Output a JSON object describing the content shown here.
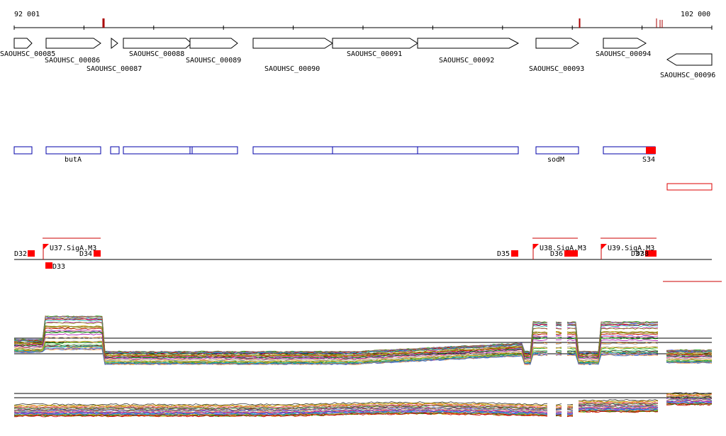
{
  "ruler": {
    "start_label": "92 001",
    "end_label": "102 000"
  },
  "genes": [
    {
      "label": "SAOUHSC_00085",
      "strand": "+"
    },
    {
      "label": "SAOUHSC_00086",
      "strand": "+"
    },
    {
      "label": "SAOUHSC_00087",
      "strand": "+"
    },
    {
      "label": "SAOUHSC_00088",
      "strand": "+"
    },
    {
      "label": "SAOUHSC_00089",
      "strand": "+"
    },
    {
      "label": "SAOUHSC_00090",
      "strand": "+"
    },
    {
      "label": "SAOUHSC_00091",
      "strand": "+"
    },
    {
      "label": "SAOUHSC_00092",
      "strand": "+"
    },
    {
      "label": "SAOUHSC_00093",
      "strand": "+"
    },
    {
      "label": "SAOUHSC_00094",
      "strand": "+"
    },
    {
      "label": "SAOUHSC_00096",
      "strand": "-"
    }
  ],
  "features": [
    {
      "label": ""
    },
    {
      "label": "butA"
    },
    {
      "label": ""
    },
    {
      "label": ""
    },
    {
      "label": ""
    },
    {
      "label": ""
    },
    {
      "label": "sodM"
    },
    {
      "label": "S34"
    }
  ],
  "promoters": [
    "U37.SigA.M3",
    "U38.SigA.M3",
    "U39.SigA.M3"
  ],
  "terminators": [
    "D32",
    "D33",
    "D34",
    "D35",
    "D36",
    "D37",
    "D38"
  ],
  "colors": {
    "gene_outline": "#000000",
    "feature_outline": "#0000aa",
    "highlight": "#ff0000",
    "tick_mark": "#aa0000",
    "profile_palette": [
      "#cc0000",
      "#e0a000",
      "#009900",
      "#6666ff",
      "#00aaaa",
      "#aa00aa",
      "#996633",
      "#888800",
      "#ff6699",
      "#333333",
      "#66cc66",
      "#ff9933",
      "#3366cc",
      "#999999"
    ]
  },
  "icons": [
    "forward-gene-arrow",
    "reverse-gene-arrow",
    "promoter-flag-icon",
    "terminator-block-icon"
  ]
}
